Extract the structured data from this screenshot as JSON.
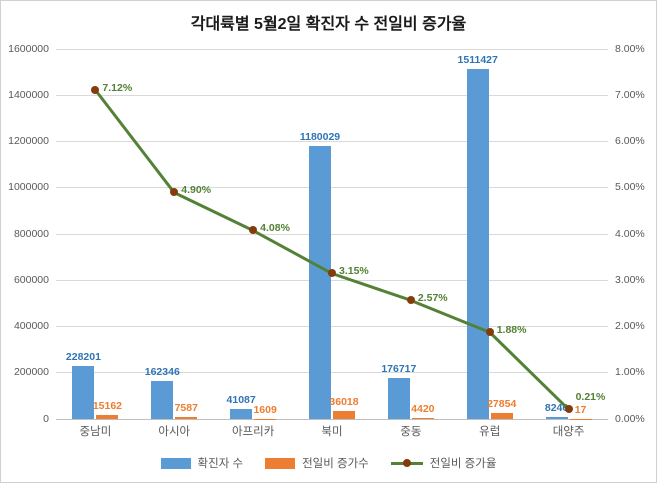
{
  "title": "각대륙별 5월2일 확진자 수 전일비 증가율",
  "chart_data": {
    "type": "bar",
    "subtype": "combo-bar-line",
    "title": "각대륙별 5월2일 확진자 수 전일비 증가율",
    "categories": [
      "중남미",
      "아시아",
      "아프리카",
      "북미",
      "중동",
      "유럽",
      "대양주"
    ],
    "series": [
      {
        "name": "확진자 수",
        "kind": "bar",
        "axis": "left",
        "color": "#5B9BD5",
        "label_color": "#2E75B6",
        "values": [
          228201,
          162346,
          41087,
          1180029,
          176717,
          1511427,
          8246
        ]
      },
      {
        "name": "전일비 증가수",
        "kind": "bar",
        "axis": "left",
        "color": "#ED7D31",
        "label_color": "#ED7D31",
        "values": [
          15162,
          7587,
          1609,
          36018,
          4420,
          27854,
          17
        ]
      },
      {
        "name": "전일비 증가율",
        "kind": "line",
        "axis": "right",
        "color": "#538135",
        "marker_color": "#843C0C",
        "label_color": "#538135",
        "values": [
          7.12,
          4.9,
          4.08,
          3.15,
          2.57,
          1.88,
          0.21
        ],
        "labels": [
          "7.12%",
          "4.90%",
          "4.08%",
          "3.15%",
          "2.57%",
          "1.88%",
          "0.21%"
        ]
      }
    ],
    "left_axis": {
      "min": 0,
      "max": 1600000,
      "step": 200000,
      "ticks": [
        "0",
        "200000",
        "400000",
        "600000",
        "800000",
        "1000000",
        "1200000",
        "1400000",
        "1600000"
      ]
    },
    "right_axis": {
      "min": 0,
      "max": 8,
      "step": 1,
      "ticks": [
        "0.00%",
        "1.00%",
        "2.00%",
        "3.00%",
        "4.00%",
        "5.00%",
        "6.00%",
        "7.00%",
        "8.00%"
      ]
    },
    "grid": true,
    "legend_position": "bottom",
    "legend": [
      {
        "label": "확진자 수",
        "marker": "bar",
        "color": "#5B9BD5"
      },
      {
        "label": "전일비 증가수",
        "marker": "bar",
        "color": "#ED7D31"
      },
      {
        "label": "전일비 증가율",
        "marker": "line-dot",
        "color": "#538135",
        "dot_color": "#843C0C"
      }
    ]
  }
}
